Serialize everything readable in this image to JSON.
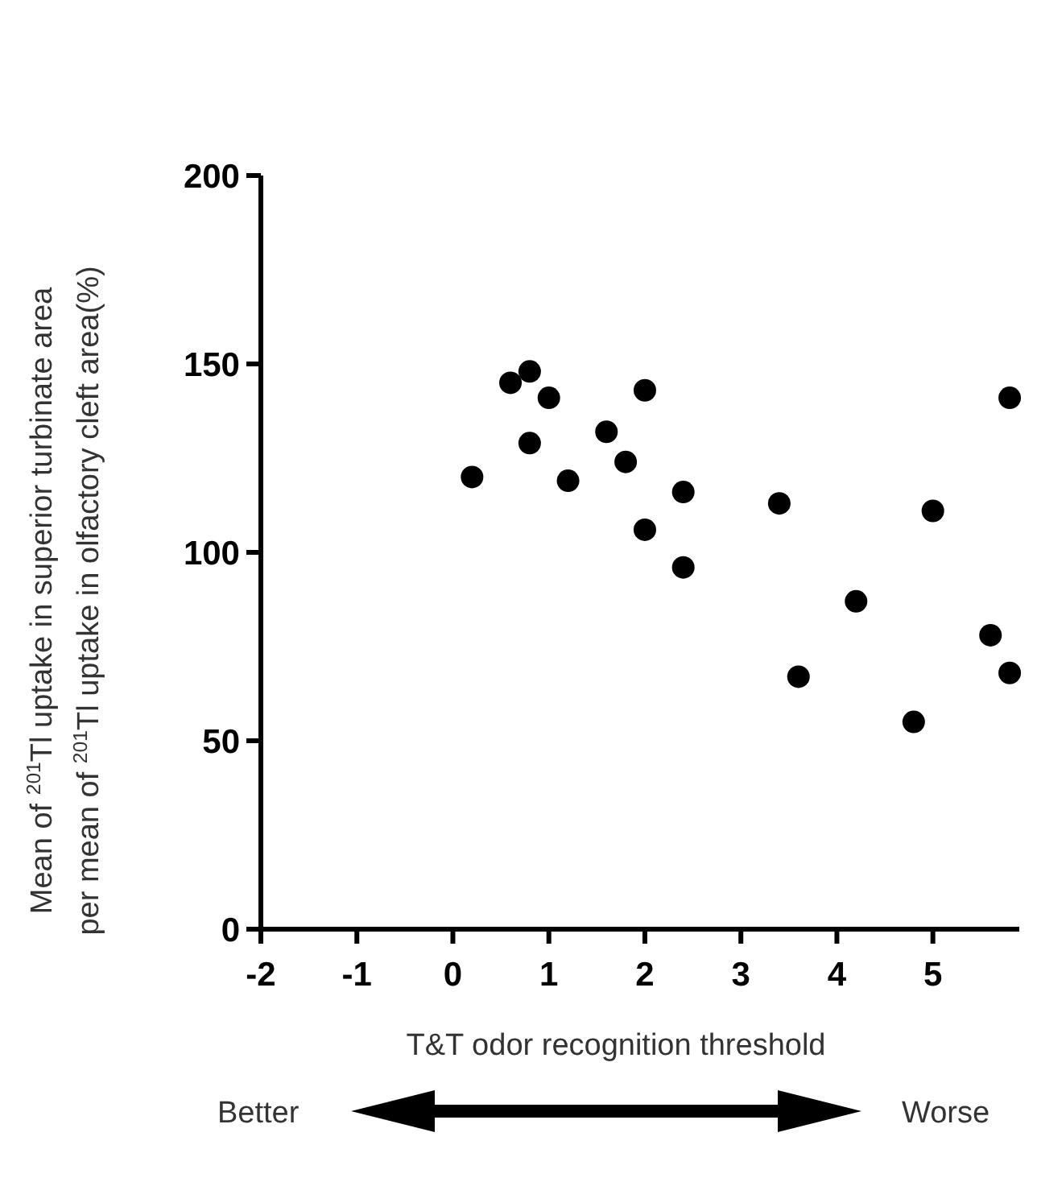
{
  "chart_data": {
    "type": "scatter",
    "xlabel": "T&T odor recognition threshold",
    "ylabel": "Mean of $^{201}$Tl uptake in superior turbinate area\nper mean of $^{201}$Tl uptake in olfactory cleft area(%)",
    "x": [
      0.2,
      0.6,
      0.8,
      0.8,
      1.0,
      1.2,
      1.6,
      1.8,
      2.0,
      2.0,
      2.4,
      2.4,
      3.4,
      3.6,
      4.2,
      4.8,
      5.0,
      5.6,
      5.8,
      5.8
    ],
    "values": [
      120,
      145,
      148,
      129,
      141,
      119,
      132,
      124,
      143,
      106,
      116,
      96,
      113,
      67,
      87,
      55,
      111,
      78,
      141,
      68
    ],
    "color": "#000000",
    "marker": "circle",
    "xlim": [
      -2,
      5.9
    ],
    "ylim": [
      0,
      200
    ],
    "xticks": [
      -2,
      -1,
      0,
      1,
      2,
      3,
      4,
      5
    ],
    "yticks": [
      0,
      50,
      100,
      150,
      200
    ],
    "grid": false,
    "annotations": [
      "Better",
      "Worse"
    ]
  }
}
